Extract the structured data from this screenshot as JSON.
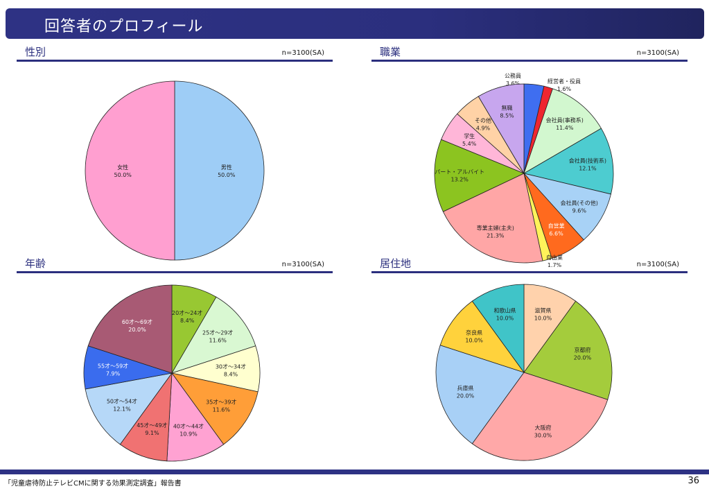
{
  "page": {
    "title": "回答者のプロフィール",
    "footer": "「児童虐待防止テレビCMに関する効果測定調査」報告書",
    "page_number": "36"
  },
  "chart_data": [
    {
      "id": "gender",
      "type": "pie",
      "title": "性別",
      "sample": "n=3100(SA)",
      "slices": [
        {
          "label": "男性",
          "value": 50.0,
          "color": "#9ecdf6"
        },
        {
          "label": "女性",
          "value": 50.0,
          "color": "#ff9fd0"
        }
      ]
    },
    {
      "id": "occupation",
      "type": "pie",
      "title": "職業",
      "sample": "n=3100(SA)",
      "slices": [
        {
          "label": "公務員",
          "value": 3.6,
          "color": "#3f6ef0"
        },
        {
          "label": "経営者・役員",
          "value": 1.6,
          "color": "#ee2630"
        },
        {
          "label": "会社員(事務系)",
          "value": 11.4,
          "color": "#d2f7cf"
        },
        {
          "label": "会社員(技術系)",
          "value": 12.1,
          "color": "#4dccd0"
        },
        {
          "label": "会社員(その他)",
          "value": 9.6,
          "color": "#a8d2f6"
        },
        {
          "label": "自営業",
          "value": 6.6,
          "color": "#ff6a1e"
        },
        {
          "label": "自由業",
          "value": 1.7,
          "color": "#fff35a"
        },
        {
          "label": "専業主婦(主夫)",
          "value": 21.3,
          "color": "#ffa6a6"
        },
        {
          "label": "パート・アルバイト",
          "value": 13.2,
          "color": "#8cc420"
        },
        {
          "label": "学生",
          "value": 5.4,
          "color": "#ffb6d8"
        },
        {
          "label": "その他",
          "value": 4.9,
          "color": "#ffd2a6"
        },
        {
          "label": "無職",
          "value": 8.5,
          "color": "#c7a6ee"
        }
      ]
    },
    {
      "id": "age",
      "type": "pie",
      "title": "年齢",
      "sample": "n=3100(SA)",
      "slices": [
        {
          "label": "20才～24才",
          "value": 8.4,
          "color": "#98c832"
        },
        {
          "label": "25才～29才",
          "value": 11.6,
          "color": "#d9f8d2"
        },
        {
          "label": "30才～34才",
          "value": 8.4,
          "color": "#ffffcf"
        },
        {
          "label": "35才～39才",
          "value": 11.6,
          "color": "#ff9e38"
        },
        {
          "label": "40才～44才",
          "value": 10.9,
          "color": "#ffa2d2"
        },
        {
          "label": "45才～49才",
          "value": 9.1,
          "color": "#f07272"
        },
        {
          "label": "50才～54才",
          "value": 12.1,
          "color": "#b6d8f8"
        },
        {
          "label": "55才～59才",
          "value": 7.9,
          "color": "#3a6cee"
        },
        {
          "label": "60才～69才",
          "value": 20.0,
          "color": "#a85a74"
        }
      ]
    },
    {
      "id": "residence",
      "type": "pie",
      "title": "居住地",
      "sample": "n=3100(SA)",
      "slices": [
        {
          "label": "滋賀県",
          "value": 10.0,
          "color": "#ffd2ac"
        },
        {
          "label": "京都府",
          "value": 20.0,
          "color": "#a4cc3c"
        },
        {
          "label": "大阪府",
          "value": 30.0,
          "color": "#ffa8a8"
        },
        {
          "label": "兵庫県",
          "value": 20.0,
          "color": "#a8d0f6"
        },
        {
          "label": "奈良県",
          "value": 10.0,
          "color": "#ffd23c"
        },
        {
          "label": "和歌山県",
          "value": 10.0,
          "color": "#40c4c8"
        }
      ]
    }
  ]
}
